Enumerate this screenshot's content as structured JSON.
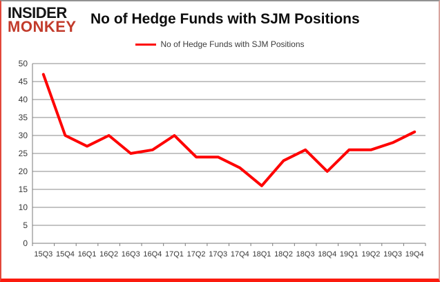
{
  "header": {
    "logo_line1": "INSIDER",
    "logo_line2": "MONKEY",
    "title": "No of Hedge Funds with SJM Positions"
  },
  "legend": {
    "label": "No of Hedge Funds with SJM Positions"
  },
  "colors": {
    "line": "#fe0000",
    "logo_black": "#151515",
    "logo_red": "#c23b2b",
    "grid": "#8a8a8a",
    "axis": "#7a7a7a",
    "axis_text": "#363636",
    "frame_red": "#fb1b0e"
  },
  "chart_data": {
    "type": "line",
    "title": "No of Hedge Funds with SJM Positions",
    "categories": [
      "15Q3",
      "15Q4",
      "16Q1",
      "16Q2",
      "16Q3",
      "16Q4",
      "17Q1",
      "17Q2",
      "17Q3",
      "17Q4",
      "18Q1",
      "18Q2",
      "18Q3",
      "18Q4",
      "19Q1",
      "19Q2",
      "19Q3",
      "19Q4"
    ],
    "series": [
      {
        "name": "No of Hedge Funds with SJM Positions",
        "color": "#fe0000",
        "values": [
          47,
          30,
          27,
          30,
          25,
          26,
          30,
          24,
          24,
          21,
          16,
          23,
          26,
          20,
          26,
          26,
          28,
          31
        ]
      }
    ],
    "xlabel": "",
    "ylabel": "",
    "ylim": [
      0,
      50
    ],
    "ytick_step": 5,
    "grid": true,
    "legend_position": "top-center"
  }
}
